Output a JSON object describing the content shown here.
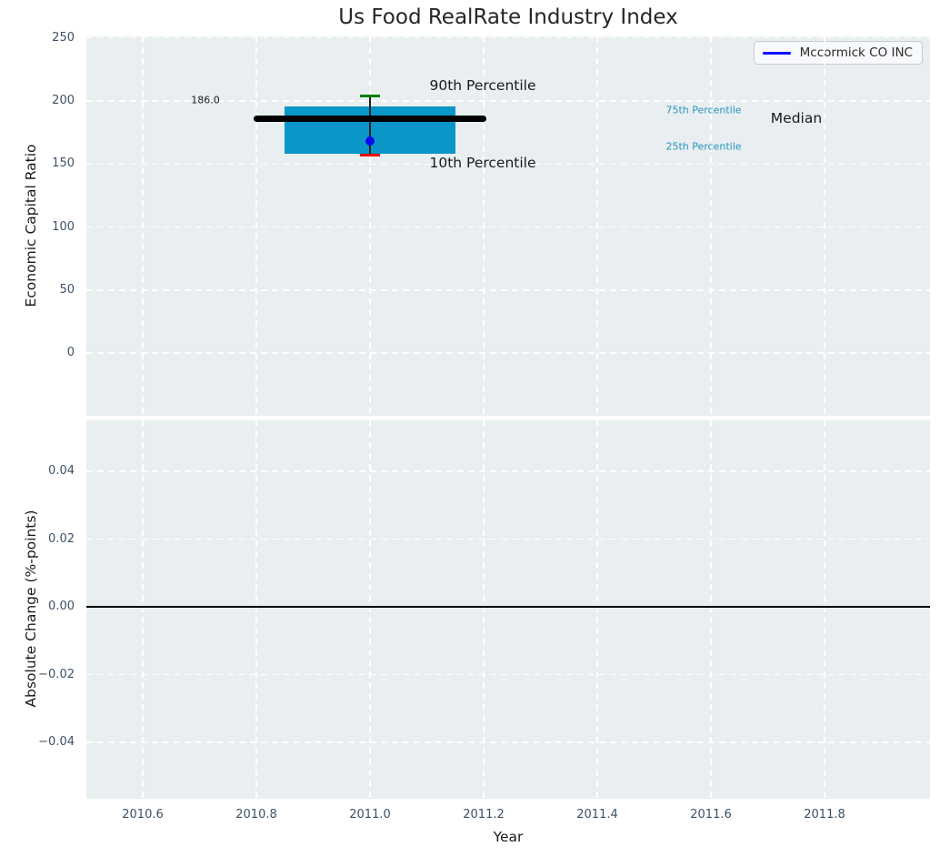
{
  "title": "Us Food RealRate Industry Index",
  "legend": {
    "label": "Mccormick CO INC"
  },
  "colors": {
    "axes_background": "#e9eef0",
    "grid": "#ffffff",
    "tick_label": "#3d5166",
    "box_fill": "#0a96c8",
    "median_line": "#000000",
    "p90_cap": "#008000",
    "p10_cap": "#ff0000",
    "company_marker": "#0a0aee",
    "legend_line": "#1010ff",
    "percentile_label": "#2596be",
    "zero_line": "#000000"
  },
  "top_panel": {
    "ylabel": "Economic Capital Ratio",
    "ytick_labels": [
      "0",
      "50",
      "100",
      "150",
      "200",
      "250"
    ],
    "labels": {
      "median_value": "186.0",
      "p90": "90th Percentile",
      "p10": "10th Percentile",
      "p75": "75th Percentile",
      "p25": "25th Percentile",
      "median": "Median"
    }
  },
  "bottom_panel": {
    "ylabel": "Absolute Change (%-points)",
    "ytick_labels": [
      "−0.04",
      "−0.02",
      "0.00",
      "0.02",
      "0.04"
    ]
  },
  "xaxis": {
    "label": "Year",
    "tick_labels": [
      "2010.6",
      "2010.8",
      "2011.0",
      "2011.2",
      "2011.4",
      "2011.6",
      "2011.8"
    ]
  },
  "chart_data": [
    {
      "type": "boxplot",
      "panel": "top",
      "title": "Us Food RealRate Industry Index",
      "xlabel": "Year",
      "ylabel": "Economic Capital Ratio",
      "xlim": [
        2010.5,
        2011.99
      ],
      "ylim": [
        -50,
        251
      ],
      "xticks": [
        2010.6,
        2010.8,
        2011.0,
        2011.2,
        2011.4,
        2011.6,
        2011.8
      ],
      "yticks": [
        0,
        50,
        100,
        150,
        200,
        250
      ],
      "grid": true,
      "legend_position": "upper right",
      "box": {
        "x": 2011.0,
        "p10": 157,
        "p25": 158.5,
        "median": 186.0,
        "p75": 196,
        "p90": 204,
        "box_halfwidth_years": 0.15,
        "median_line_halfwidth_years": 0.205,
        "cap_halfwidth_years": 0.017
      },
      "company_point": {
        "name": "Mccormick CO INC",
        "x": 2011.0,
        "y": 168
      },
      "annotations": [
        "186.0",
        "90th Percentile",
        "10th Percentile",
        "75th Percentile",
        "25th Percentile",
        "Median"
      ]
    },
    {
      "type": "line",
      "panel": "bottom",
      "xlabel": "Year",
      "ylabel": "Absolute Change (%-points)",
      "xlim": [
        2010.5,
        2011.99
      ],
      "ylim": [
        -0.0575,
        0.055
      ],
      "xticks": [
        2010.6,
        2010.8,
        2011.0,
        2011.2,
        2011.4,
        2011.6,
        2011.8
      ],
      "yticks": [
        -0.04,
        -0.02,
        0.0,
        0.02,
        0.04
      ],
      "zero_line": 0.0,
      "series": []
    }
  ]
}
